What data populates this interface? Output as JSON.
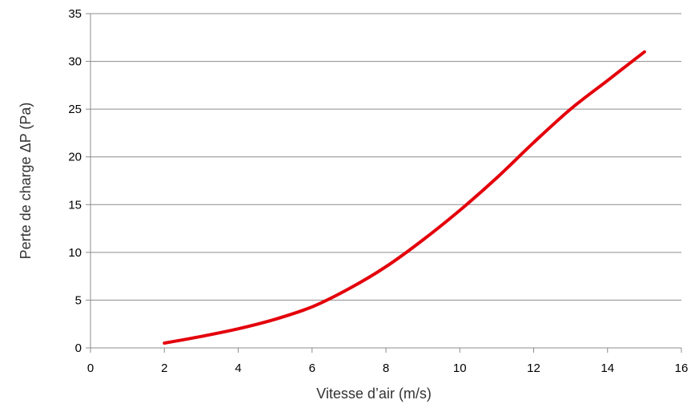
{
  "chart_data": {
    "type": "line",
    "xlabel": "Vitesse d’air (m/s)",
    "ylabel": "Perte de charge ΔP (Pa)",
    "xlim": [
      0,
      16
    ],
    "ylim": [
      0,
      35
    ],
    "x_ticks": [
      "0",
      "2",
      "4",
      "6",
      "8",
      "10",
      "12",
      "14",
      "16"
    ],
    "y_ticks": [
      "0",
      "5",
      "10",
      "15",
      "20",
      "25",
      "30",
      "35"
    ],
    "grid": "horizontal",
    "legend": "none",
    "series": [
      {
        "color": "#e3000b",
        "x": [
          2,
          3,
          4,
          5,
          6,
          7,
          8,
          9,
          10,
          11,
          12,
          13,
          14,
          15
        ],
        "y": [
          0.5,
          1.2,
          2.0,
          3.0,
          4.3,
          6.2,
          8.5,
          11.3,
          14.4,
          17.8,
          21.5,
          25.0,
          28.0,
          31.0
        ]
      }
    ]
  }
}
